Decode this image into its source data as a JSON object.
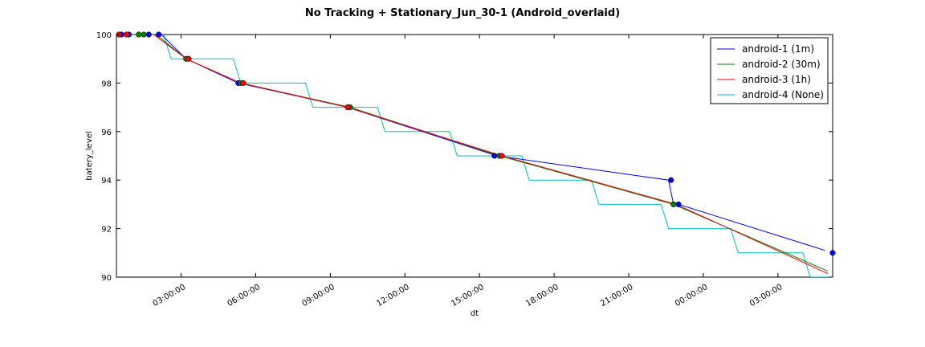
{
  "chart_data": {
    "type": "line",
    "title": "No Tracking + Stationary_Jun_30-1 (Android_overlaid)",
    "xlabel": "dt",
    "ylabel": "batery_level",
    "x_unit": "hours",
    "xlim": [
      0.0,
      28.8
    ],
    "ylim": [
      90,
      100
    ],
    "x_ticks": [
      {
        "value": 2.6,
        "label": "03:00:00"
      },
      {
        "value": 5.6,
        "label": "06:00:00"
      },
      {
        "value": 8.6,
        "label": "09:00:00"
      },
      {
        "value": 11.6,
        "label": "12:00:00"
      },
      {
        "value": 14.6,
        "label": "15:00:00"
      },
      {
        "value": 17.6,
        "label": "18:00:00"
      },
      {
        "value": 20.6,
        "label": "21:00:00"
      },
      {
        "value": 23.6,
        "label": "00:00:00"
      },
      {
        "value": 26.6,
        "label": "03:00:00"
      }
    ],
    "y_ticks": [
      90,
      92,
      94,
      96,
      98,
      100
    ],
    "grid": false,
    "legend_position": "top-right",
    "series": [
      {
        "name": "android-1 (1m)",
        "color": "#0000ff",
        "x": [
          0.0,
          1.8,
          2.8,
          4.9,
          9.3,
          15.3,
          22.2,
          22.4,
          22.6,
          28.5
        ],
        "y": [
          100,
          100,
          99,
          98,
          97,
          95,
          94,
          93,
          93,
          91.1
        ],
        "markers": [
          {
            "x": 0.2,
            "y": 100
          },
          {
            "x": 0.5,
            "y": 100
          },
          {
            "x": 0.9,
            "y": 100
          },
          {
            "x": 1.3,
            "y": 100
          },
          {
            "x": 1.7,
            "y": 100
          },
          {
            "x": 2.9,
            "y": 99
          },
          {
            "x": 4.9,
            "y": 98
          },
          {
            "x": 9.3,
            "y": 97
          },
          {
            "x": 15.2,
            "y": 95
          },
          {
            "x": 15.4,
            "y": 95
          },
          {
            "x": 22.3,
            "y": 94
          },
          {
            "x": 22.4,
            "y": 93
          },
          {
            "x": 22.6,
            "y": 93
          },
          {
            "x": 28.8,
            "y": 91
          }
        ]
      },
      {
        "name": "android-2 (30m)",
        "color": "#008000",
        "x": [
          0.0,
          1.6,
          2.8,
          5.0,
          9.4,
          15.4,
          22.4,
          28.6
        ],
        "y": [
          100,
          100,
          99,
          98,
          97,
          95,
          93,
          90.25
        ],
        "markers": [
          {
            "x": 0.9,
            "y": 100
          },
          {
            "x": 1.1,
            "y": 100
          },
          {
            "x": 2.8,
            "y": 99
          },
          {
            "x": 5.0,
            "y": 98
          },
          {
            "x": 9.4,
            "y": 97
          },
          {
            "x": 15.4,
            "y": 95
          },
          {
            "x": 22.4,
            "y": 93
          }
        ]
      },
      {
        "name": "android-3 (1h)",
        "color": "#ff0000",
        "x": [
          0.0,
          1.5,
          2.8,
          5.0,
          9.3,
          15.5,
          22.5,
          28.6
        ],
        "y": [
          100,
          100,
          99,
          98,
          97,
          95,
          93,
          90.15
        ],
        "markers": [
          {
            "x": 0.1,
            "y": 100
          },
          {
            "x": 0.4,
            "y": 100
          },
          {
            "x": 2.9,
            "y": 99
          },
          {
            "x": 5.1,
            "y": 98
          },
          {
            "x": 9.3,
            "y": 97
          },
          {
            "x": 15.5,
            "y": 95
          }
        ]
      },
      {
        "name": "android-4 (None)",
        "color": "#00bfbf",
        "x": [
          0.0,
          1.9,
          2.2,
          4.7,
          5.0,
          7.6,
          7.9,
          10.5,
          10.8,
          13.4,
          13.7,
          16.3,
          16.6,
          19.1,
          19.4,
          21.9,
          22.2,
          24.7,
          25.0,
          27.6,
          27.9,
          28.8
        ],
        "y": [
          100,
          100,
          99,
          99,
          98,
          98,
          97,
          97,
          96,
          96,
          95,
          95,
          94,
          94,
          93,
          93,
          92,
          92,
          91,
          91,
          90,
          90
        ],
        "markers": []
      }
    ]
  }
}
